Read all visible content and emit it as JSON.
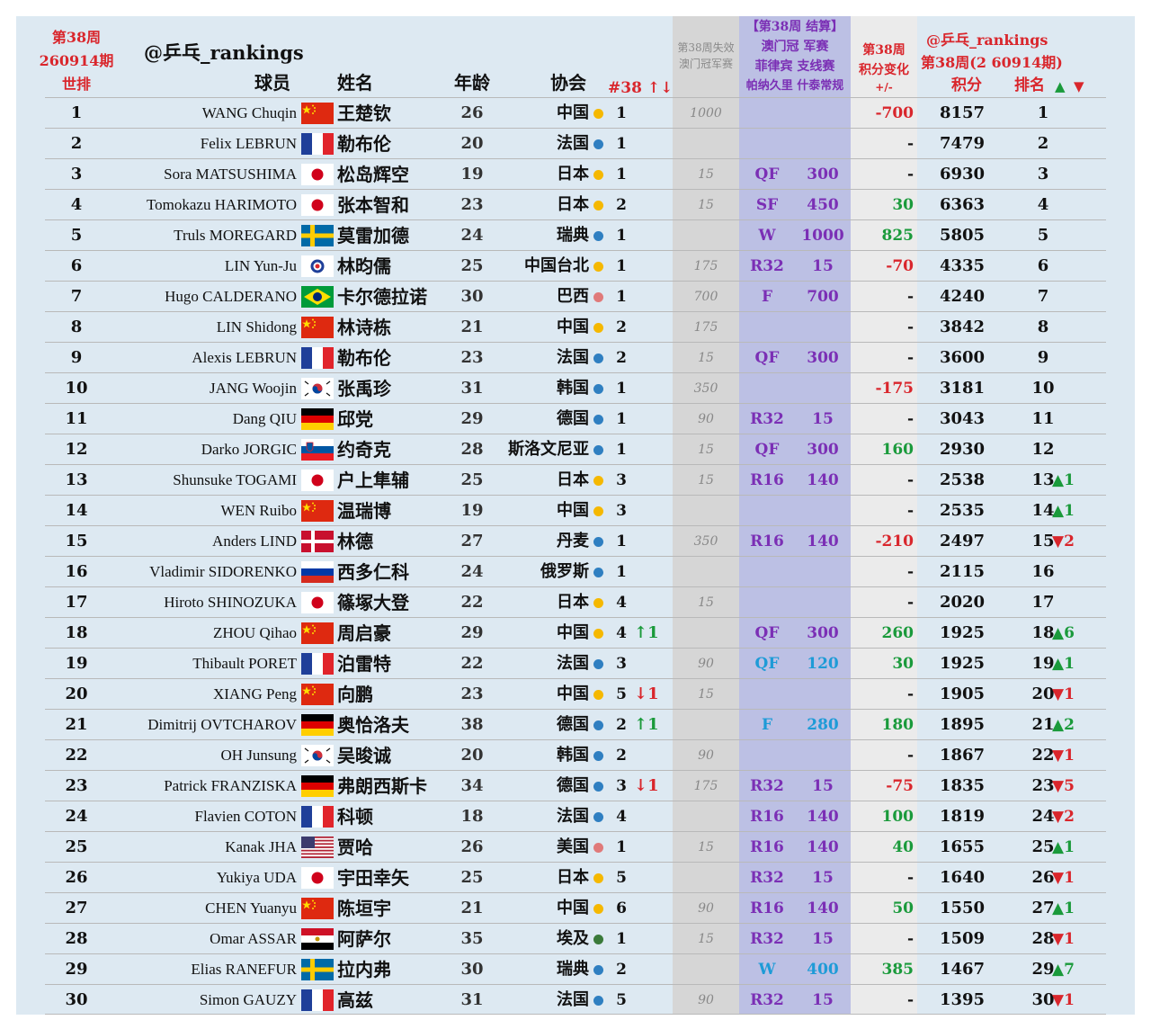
{
  "header": {
    "week_left_1": "第38周",
    "week_left_2": "260914期",
    "world_rank": "世排",
    "handle_left": "@乒乓_rankings",
    "col_player": "球员",
    "col_name": "姓名",
    "col_age": "年龄",
    "col_assoc": "协会",
    "col_count": "#38 ↑↓",
    "lost_1": "第38周失效",
    "lost_2": "澳门冠军赛",
    "settle_1": "【第38周 结算】",
    "settle_2": "澳门冠 军赛",
    "settle_3": "菲律宾 支线赛",
    "settle_4": "帕纳久里 什泰常规",
    "change_1": "第38周",
    "change_2": "积分变化",
    "change_3": "+/-",
    "handle_right": "@乒乓_rankings",
    "right_week": "第38周(2 60914期)",
    "col_points": "积分",
    "col_rank": "排名",
    "col_rank_arrows_up": "▲",
    "col_rank_arrows_down": "▼"
  },
  "colors": {
    "cn_dot": "#f5b800",
    "blue_dot": "#2f7fc1",
    "pink_dot": "#e07a7a",
    "green_dot": "#3a7a3a"
  },
  "rows": [
    {
      "rank": "1",
      "en": "WANG Chuqin",
      "flag": "CN",
      "cn": "王楚钦",
      "age": "26",
      "assoc": "中国",
      "dot": "#f5b800",
      "cnt": "1",
      "move": "",
      "dir": "",
      "lost": "1000",
      "round": "",
      "pts": "",
      "pc": "",
      "chg": "-700",
      "ct": "neg",
      "total": "8157",
      "nr": "1",
      "trend": "",
      "td": ""
    },
    {
      "rank": "2",
      "en": "Felix LEBRUN",
      "flag": "FR",
      "cn": "勒布伦",
      "age": "20",
      "assoc": "法国",
      "dot": "#2f7fc1",
      "cnt": "1",
      "move": "",
      "dir": "",
      "lost": "",
      "round": "",
      "pts": "",
      "pc": "",
      "chg": "-",
      "ct": "none",
      "total": "7479",
      "nr": "2",
      "trend": "",
      "td": ""
    },
    {
      "rank": "3",
      "en": "Sora MATSUSHIMA",
      "flag": "JP",
      "cn": "松岛辉空",
      "age": "19",
      "assoc": "日本",
      "dot": "#f5b800",
      "cnt": "1",
      "move": "",
      "dir": "",
      "lost": "15",
      "round": "QF",
      "pts": "300",
      "pc": "",
      "chg": "-",
      "ct": "none",
      "total": "6930",
      "nr": "3",
      "trend": "",
      "td": ""
    },
    {
      "rank": "4",
      "en": "Tomokazu HARIMOTO",
      "flag": "JP",
      "cn": "张本智和",
      "age": "23",
      "assoc": "日本",
      "dot": "#f5b800",
      "cnt": "2",
      "move": "",
      "dir": "",
      "lost": "15",
      "round": "SF",
      "pts": "450",
      "pc": "",
      "chg": "30",
      "ct": "pos",
      "total": "6363",
      "nr": "4",
      "trend": "",
      "td": ""
    },
    {
      "rank": "5",
      "en": "Truls MOREGARD",
      "flag": "SE",
      "cn": "莫雷加德",
      "age": "24",
      "assoc": "瑞典",
      "dot": "#2f7fc1",
      "cnt": "1",
      "move": "",
      "dir": "",
      "lost": "",
      "round": "W",
      "pts": "1000",
      "pc": "",
      "chg": "825",
      "ct": "pos",
      "total": "5805",
      "nr": "5",
      "trend": "",
      "td": ""
    },
    {
      "rank": "6",
      "en": "LIN Yun-Ju",
      "flag": "TPE",
      "cn": "林昀儒",
      "age": "25",
      "assoc": "中国台北",
      "dot": "#f5b800",
      "cnt": "1",
      "move": "",
      "dir": "",
      "lost": "175",
      "round": "R32",
      "pts": "15",
      "pc": "",
      "chg": "-70",
      "ct": "neg",
      "total": "4335",
      "nr": "6",
      "trend": "",
      "td": ""
    },
    {
      "rank": "7",
      "en": "Hugo CALDERANO",
      "flag": "BR",
      "cn": "卡尔德拉诺",
      "age": "30",
      "assoc": "巴西",
      "dot": "#e07a7a",
      "cnt": "1",
      "move": "",
      "dir": "",
      "lost": "700",
      "round": "F",
      "pts": "700",
      "pc": "",
      "chg": "-",
      "ct": "none",
      "total": "4240",
      "nr": "7",
      "trend": "",
      "td": ""
    },
    {
      "rank": "8",
      "en": "LIN Shidong",
      "flag": "CN",
      "cn": "林诗栋",
      "age": "21",
      "assoc": "中国",
      "dot": "#f5b800",
      "cnt": "2",
      "move": "",
      "dir": "",
      "lost": "175",
      "round": "",
      "pts": "",
      "pc": "",
      "chg": "-",
      "ct": "none",
      "total": "3842",
      "nr": "8",
      "trend": "",
      "td": ""
    },
    {
      "rank": "9",
      "en": "Alexis LEBRUN",
      "flag": "FR",
      "cn": "勒布伦",
      "age": "23",
      "assoc": "法国",
      "dot": "#2f7fc1",
      "cnt": "2",
      "move": "",
      "dir": "",
      "lost": "15",
      "round": "QF",
      "pts": "300",
      "pc": "",
      "chg": "-",
      "ct": "none",
      "total": "3600",
      "nr": "9",
      "trend": "",
      "td": ""
    },
    {
      "rank": "10",
      "en": "JANG Woojin",
      "flag": "KR",
      "cn": "张禹珍",
      "age": "31",
      "assoc": "韩国",
      "dot": "#2f7fc1",
      "cnt": "1",
      "move": "",
      "dir": "",
      "lost": "350",
      "round": "",
      "pts": "",
      "pc": "",
      "chg": "-175",
      "ct": "neg",
      "total": "3181",
      "nr": "10",
      "trend": "",
      "td": ""
    },
    {
      "rank": "11",
      "en": "Dang QIU",
      "flag": "DE",
      "cn": "邱党",
      "age": "29",
      "assoc": "德国",
      "dot": "#2f7fc1",
      "cnt": "1",
      "move": "",
      "dir": "",
      "lost": "90",
      "round": "R32",
      "pts": "15",
      "pc": "",
      "chg": "-",
      "ct": "none",
      "total": "3043",
      "nr": "11",
      "trend": "",
      "td": ""
    },
    {
      "rank": "12",
      "en": "Darko JORGIC",
      "flag": "SI",
      "cn": "约奇克",
      "age": "28",
      "assoc": "斯洛文尼亚",
      "dot": "#2f7fc1",
      "cnt": "1",
      "move": "",
      "dir": "",
      "lost": "15",
      "round": "QF",
      "pts": "300",
      "pc": "",
      "chg": "160",
      "ct": "pos",
      "total": "2930",
      "nr": "12",
      "trend": "",
      "td": ""
    },
    {
      "rank": "13",
      "en": "Shunsuke TOGAMI",
      "flag": "JP",
      "cn": "户上隼辅",
      "age": "25",
      "assoc": "日本",
      "dot": "#f5b800",
      "cnt": "3",
      "move": "",
      "dir": "",
      "lost": "15",
      "round": "R16",
      "pts": "140",
      "pc": "",
      "chg": "-",
      "ct": "none",
      "total": "2538",
      "nr": "13",
      "trend": "▲1",
      "td": "up"
    },
    {
      "rank": "14",
      "en": "WEN Ruibo",
      "flag": "CN",
      "cn": "温瑞博",
      "age": "19",
      "assoc": "中国",
      "dot": "#f5b800",
      "cnt": "3",
      "move": "",
      "dir": "",
      "lost": "",
      "round": "",
      "pts": "",
      "pc": "",
      "chg": "-",
      "ct": "none",
      "total": "2535",
      "nr": "14",
      "trend": "▲1",
      "td": "up"
    },
    {
      "rank": "15",
      "en": "Anders LIND",
      "flag": "DK",
      "cn": "林德",
      "age": "27",
      "assoc": "丹麦",
      "dot": "#2f7fc1",
      "cnt": "1",
      "move": "",
      "dir": "",
      "lost": "350",
      "round": "R16",
      "pts": "140",
      "pc": "",
      "chg": "-210",
      "ct": "neg",
      "total": "2497",
      "nr": "15",
      "trend": "▼2",
      "td": "down"
    },
    {
      "rank": "16",
      "en": "Vladimir SIDORENKO",
      "flag": "RU",
      "cn": "西多仁科",
      "age": "24",
      "assoc": "俄罗斯",
      "dot": "#2f7fc1",
      "cnt": "1",
      "move": "",
      "dir": "",
      "lost": "",
      "round": "",
      "pts": "",
      "pc": "",
      "chg": "-",
      "ct": "none",
      "total": "2115",
      "nr": "16",
      "trend": "",
      "td": ""
    },
    {
      "rank": "17",
      "en": "Hiroto SHINOZUKA",
      "flag": "JP",
      "cn": "篠塚大登",
      "age": "22",
      "assoc": "日本",
      "dot": "#f5b800",
      "cnt": "4",
      "move": "",
      "dir": "",
      "lost": "15",
      "round": "",
      "pts": "",
      "pc": "",
      "chg": "-",
      "ct": "none",
      "total": "2020",
      "nr": "17",
      "trend": "",
      "td": ""
    },
    {
      "rank": "18",
      "en": "ZHOU Qihao",
      "flag": "CN",
      "cn": "周启豪",
      "age": "29",
      "assoc": "中国",
      "dot": "#f5b800",
      "cnt": "4",
      "move": "↑1",
      "dir": "up",
      "lost": "",
      "round": "QF",
      "pts": "300",
      "pc": "",
      "chg": "260",
      "ct": "pos",
      "total": "1925",
      "nr": "18",
      "trend": "▲6",
      "td": "up"
    },
    {
      "rank": "19",
      "en": "Thibault PORET",
      "flag": "FR",
      "cn": "泊雷特",
      "age": "22",
      "assoc": "法国",
      "dot": "#2f7fc1",
      "cnt": "3",
      "move": "",
      "dir": "",
      "lost": "90",
      "round": "QF",
      "pts": "120",
      "pc": "blue",
      "chg": "30",
      "ct": "pos",
      "total": "1925",
      "nr": "19",
      "trend": "▲1",
      "td": "up"
    },
    {
      "rank": "20",
      "en": "XIANG Peng",
      "flag": "CN",
      "cn": "向鹏",
      "age": "23",
      "assoc": "中国",
      "dot": "#f5b800",
      "cnt": "5",
      "move": "↓1",
      "dir": "down",
      "lost": "15",
      "round": "",
      "pts": "",
      "pc": "",
      "chg": "-",
      "ct": "none",
      "total": "1905",
      "nr": "20",
      "trend": "▼1",
      "td": "down"
    },
    {
      "rank": "21",
      "en": "Dimitrij OVTCHAROV",
      "flag": "DE",
      "cn": "奥恰洛夫",
      "age": "38",
      "assoc": "德国",
      "dot": "#2f7fc1",
      "cnt": "2",
      "move": "↑1",
      "dir": "up",
      "lost": "",
      "round": "F",
      "pts": "280",
      "pc": "blue",
      "chg": "180",
      "ct": "pos",
      "total": "1895",
      "nr": "21",
      "trend": "▲2",
      "td": "up"
    },
    {
      "rank": "22",
      "en": "OH Junsung",
      "flag": "KR",
      "cn": "吴晙诚",
      "age": "20",
      "assoc": "韩国",
      "dot": "#2f7fc1",
      "cnt": "2",
      "move": "",
      "dir": "",
      "lost": "90",
      "round": "",
      "pts": "",
      "pc": "",
      "chg": "-",
      "ct": "none",
      "total": "1867",
      "nr": "22",
      "trend": "▼1",
      "td": "down"
    },
    {
      "rank": "23",
      "en": "Patrick FRANZISKA",
      "flag": "DE",
      "cn": "弗朗西斯卡",
      "age": "34",
      "assoc": "德国",
      "dot": "#2f7fc1",
      "cnt": "3",
      "move": "↓1",
      "dir": "down",
      "lost": "175",
      "round": "R32",
      "pts": "15",
      "pc": "",
      "chg": "-75",
      "ct": "neg",
      "total": "1835",
      "nr": "23",
      "trend": "▼5",
      "td": "down"
    },
    {
      "rank": "24",
      "en": "Flavien COTON",
      "flag": "FR",
      "cn": "科顿",
      "age": "18",
      "assoc": "法国",
      "dot": "#2f7fc1",
      "cnt": "4",
      "move": "",
      "dir": "",
      "lost": "",
      "round": "R16",
      "pts": "140",
      "pc": "",
      "chg": "100",
      "ct": "pos",
      "total": "1819",
      "nr": "24",
      "trend": "▼2",
      "td": "down"
    },
    {
      "rank": "25",
      "en": "Kanak JHA",
      "flag": "US",
      "cn": "贾哈",
      "age": "26",
      "assoc": "美国",
      "dot": "#e07a7a",
      "cnt": "1",
      "move": "",
      "dir": "",
      "lost": "15",
      "round": "R16",
      "pts": "140",
      "pc": "",
      "chg": "40",
      "ct": "pos",
      "total": "1655",
      "nr": "25",
      "trend": "▲1",
      "td": "up"
    },
    {
      "rank": "26",
      "en": "Yukiya UDA",
      "flag": "JP",
      "cn": "宇田幸矢",
      "age": "25",
      "assoc": "日本",
      "dot": "#f5b800",
      "cnt": "5",
      "move": "",
      "dir": "",
      "lost": "",
      "round": "R32",
      "pts": "15",
      "pc": "",
      "chg": "-",
      "ct": "none",
      "total": "1640",
      "nr": "26",
      "trend": "▼1",
      "td": "down"
    },
    {
      "rank": "27",
      "en": "CHEN Yuanyu",
      "flag": "CN",
      "cn": "陈垣宇",
      "age": "21",
      "assoc": "中国",
      "dot": "#f5b800",
      "cnt": "6",
      "move": "",
      "dir": "",
      "lost": "90",
      "round": "R16",
      "pts": "140",
      "pc": "",
      "chg": "50",
      "ct": "pos",
      "total": "1550",
      "nr": "27",
      "trend": "▲1",
      "td": "up"
    },
    {
      "rank": "28",
      "en": "Omar ASSAR",
      "flag": "EG",
      "cn": "阿萨尔",
      "age": "35",
      "assoc": "埃及",
      "dot": "#3a7a3a",
      "cnt": "1",
      "move": "",
      "dir": "",
      "lost": "15",
      "round": "R32",
      "pts": "15",
      "pc": "",
      "chg": "-",
      "ct": "none",
      "total": "1509",
      "nr": "28",
      "trend": "▼1",
      "td": "down"
    },
    {
      "rank": "29",
      "en": "Elias RANEFUR",
      "flag": "SE",
      "cn": "拉内弗",
      "age": "30",
      "assoc": "瑞典",
      "dot": "#2f7fc1",
      "cnt": "2",
      "move": "",
      "dir": "",
      "lost": "",
      "round": "W",
      "pts": "400",
      "pc": "blue",
      "chg": "385",
      "ct": "pos",
      "total": "1467",
      "nr": "29",
      "trend": "▲7",
      "td": "up"
    },
    {
      "rank": "30",
      "en": "Simon GAUZY",
      "flag": "FR",
      "cn": "高兹",
      "age": "31",
      "assoc": "法国",
      "dot": "#2f7fc1",
      "cnt": "5",
      "move": "",
      "dir": "",
      "lost": "90",
      "round": "R32",
      "pts": "15",
      "pc": "",
      "chg": "-",
      "ct": "none",
      "total": "1395",
      "nr": "30",
      "trend": "▼1",
      "td": "down"
    }
  ]
}
